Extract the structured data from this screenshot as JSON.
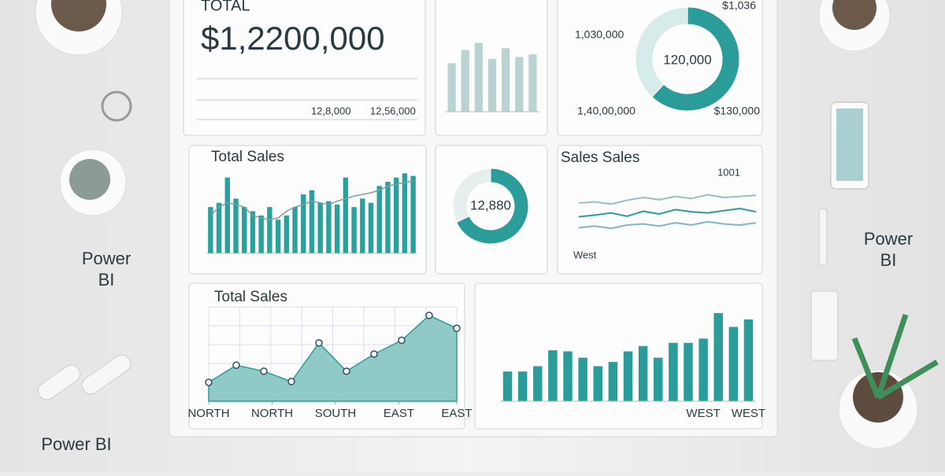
{
  "desk": {
    "left_label": [
      "Power",
      "BI"
    ],
    "bottom_label": "Power BI",
    "right_label": [
      "Power",
      "BI"
    ]
  },
  "kpi": {
    "title": "TOTAL",
    "value": "$1,2200,000",
    "figures": [
      "12,8,000",
      "12,56,000"
    ]
  },
  "chart_data": [
    {
      "type": "bar",
      "values": [
        55,
        70,
        78,
        60,
        72,
        62,
        65
      ],
      "color": "#b9d3d3",
      "ylim": [
        0,
        100
      ]
    },
    {
      "type": "pie",
      "center_label": "120,000",
      "values": [
        62,
        38
      ],
      "colors": [
        "#2a9d9a",
        "#d6ebea"
      ],
      "annotations": [
        "$1,036",
        "1,030,000",
        "1,40,00,000",
        "$130,000"
      ]
    },
    {
      "type": "bar",
      "title": "Total Sales",
      "values": [
        55,
        60,
        90,
        65,
        55,
        50,
        45,
        55,
        40,
        45,
        55,
        70,
        75,
        60,
        62,
        58,
        90,
        55,
        65,
        60,
        80,
        85,
        90,
        95,
        92
      ],
      "color": "#2aa19c",
      "line_values": [
        45,
        55,
        60,
        58,
        55,
        45,
        42,
        40,
        42,
        50,
        55,
        58,
        62,
        60,
        58,
        62,
        65,
        68,
        70,
        72,
        75,
        80,
        82,
        84,
        86
      ],
      "line_color": "#7a9fa3",
      "ylim": [
        0,
        100
      ]
    },
    {
      "type": "pie",
      "center_label": "12,880",
      "values": [
        68,
        32
      ],
      "colors": [
        "#2a9d9a",
        "#e6eeee"
      ]
    },
    {
      "type": "line",
      "title": "Sales Sales",
      "annotations": [
        "1001",
        "West"
      ],
      "series": [
        {
          "color": "#9cbfc2",
          "values": [
            60,
            62,
            58,
            65,
            70,
            66,
            72,
            68,
            75,
            70,
            72,
            74
          ]
        },
        {
          "color": "#2a9d9a",
          "values": [
            35,
            38,
            42,
            36,
            45,
            40,
            48,
            44,
            42,
            46,
            50,
            44
          ]
        },
        {
          "color": "#7fb7c0",
          "values": [
            15,
            18,
            14,
            20,
            22,
            18,
            24,
            20,
            26,
            22,
            20,
            24
          ]
        }
      ],
      "ylim": [
        0,
        100
      ]
    },
    {
      "type": "area",
      "title": "Total Sales",
      "x": [
        0,
        1,
        2,
        3,
        4,
        5,
        6,
        7,
        8,
        9
      ],
      "values": [
        22,
        42,
        35,
        23,
        68,
        35,
        55,
        71,
        100,
        85
      ],
      "xticks": [
        {
          "value": 0,
          "label": "NORTH"
        },
        {
          "value": 2.3,
          "label": "NORTH"
        },
        {
          "value": 4.6,
          "label": "SOUTH"
        },
        {
          "value": 6.9,
          "label": "EAST"
        },
        {
          "value": 9,
          "label": "EAST"
        }
      ],
      "xlim": [
        0,
        9
      ],
      "ylim": [
        0,
        110
      ],
      "color": "#2a9d9a",
      "fill": "#8fcac6"
    },
    {
      "type": "bar",
      "categories": [
        null,
        null,
        null,
        null,
        null,
        null,
        null,
        null,
        null,
        null,
        null,
        null,
        null,
        "WEST",
        null,
        null,
        "WEST"
      ],
      "values": [
        28,
        28,
        33,
        48,
        47,
        41,
        33,
        37,
        47,
        52,
        41,
        55,
        55,
        59,
        83,
        70,
        77
      ],
      "color": "#2a9d9a",
      "ylim": [
        0,
        100
      ]
    }
  ]
}
